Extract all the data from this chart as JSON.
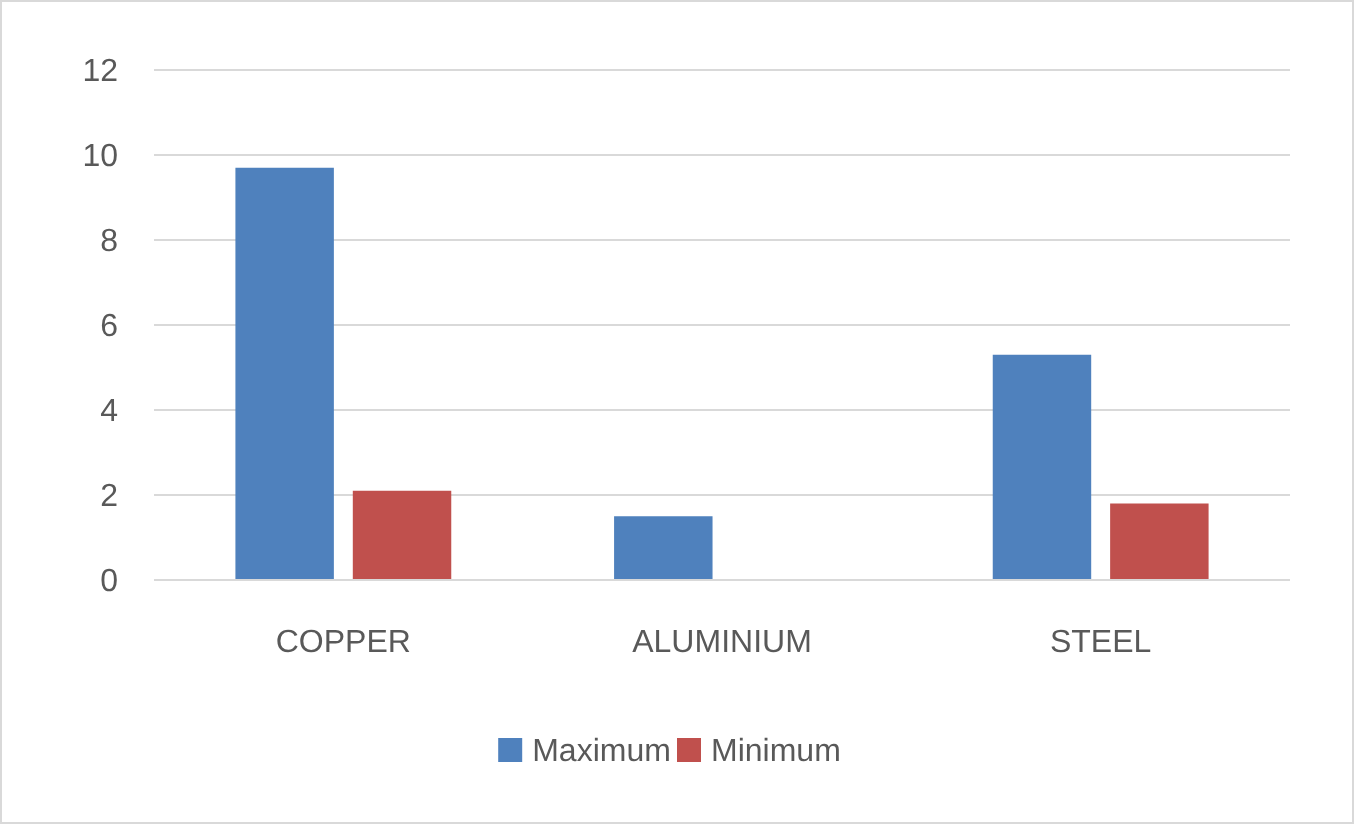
{
  "chart_data": {
    "type": "bar",
    "categories": [
      "COPPER",
      "ALUMINIUM",
      "STEEL"
    ],
    "series": [
      {
        "name": "Maximum",
        "color": "#4f81bd",
        "values": [
          9.7,
          1.5,
          5.3
        ]
      },
      {
        "name": "Minimum",
        "color": "#c0504d",
        "values": [
          2.1,
          0,
          1.8
        ]
      }
    ],
    "ylim": [
      0,
      12
    ],
    "yticks": [
      0,
      2,
      4,
      6,
      8,
      10,
      12
    ],
    "grid": "y",
    "legend": "bottom"
  }
}
